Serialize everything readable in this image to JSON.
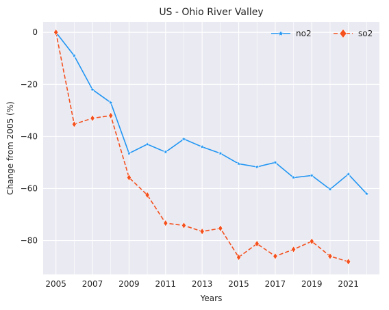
{
  "chart_data": {
    "type": "line",
    "title": "US - Ohio River Valley",
    "xlabel": "Years",
    "ylabel": "Change from 2005 (%)",
    "xlim": [
      2004.3,
      2022.7
    ],
    "ylim": [
      -93,
      4
    ],
    "x_ticks": [
      2005,
      2007,
      2009,
      2011,
      2013,
      2015,
      2017,
      2019,
      2021
    ],
    "y_ticks": [
      0,
      -20,
      -40,
      -60,
      -80
    ],
    "grid": true,
    "legend_position": "top-right",
    "series": [
      {
        "name": "no2",
        "color": "#2196f3",
        "linestyle": "solid",
        "marker": "star",
        "x": [
          2005,
          2006,
          2007,
          2008,
          2009,
          2010,
          2011,
          2012,
          2013,
          2014,
          2015,
          2016,
          2017,
          2018,
          2019,
          2020,
          2021,
          2022
        ],
        "y": [
          0,
          -9,
          -22,
          -27,
          -46.5,
          -43,
          -46,
          -41,
          -44,
          -46.5,
          -50.5,
          -51.7,
          -50,
          -55.8,
          -55,
          -60.3,
          -54.5,
          -62
        ]
      },
      {
        "name": "so2",
        "color": "#f4511e",
        "linestyle": "dashed",
        "marker": "diamond",
        "x": [
          2005,
          2006,
          2007,
          2008,
          2009,
          2010,
          2011,
          2012,
          2013,
          2014,
          2015,
          2016,
          2017,
          2018,
          2019,
          2020,
          2021
        ],
        "y": [
          0,
          -35.3,
          -33,
          -32,
          -55.8,
          -62.5,
          -73.3,
          -74.2,
          -76.5,
          -75.3,
          -86.4,
          -81.2,
          -86,
          -83.4,
          -80.3,
          -86,
          -88.1
        ]
      }
    ]
  }
}
